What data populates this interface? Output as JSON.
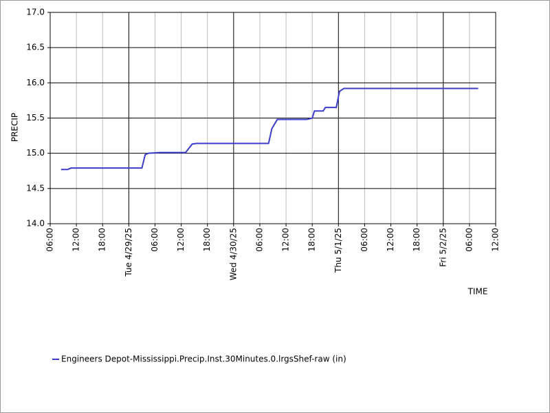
{
  "chart_data": {
    "type": "line",
    "y_label": "PRECIP",
    "x_label": "TIME",
    "x": [
      "2025-04-28T08:30",
      "2025-04-28T10:00",
      "2025-04-28T10:45",
      "2025-04-29T03:00",
      "2025-04-29T03:45",
      "2025-04-29T04:30",
      "2025-04-29T07:00",
      "2025-04-29T13:00",
      "2025-04-29T14:30",
      "2025-04-29T15:30",
      "2025-04-30T08:00",
      "2025-04-30T08:45",
      "2025-04-30T10:00",
      "2025-04-30T16:45",
      "2025-04-30T18:00",
      "2025-04-30T18:30",
      "2025-04-30T20:30",
      "2025-04-30T21:00",
      "2025-04-30T23:30",
      "2025-05-01T00:15",
      "2025-05-01T01:15",
      "2025-05-02T08:00"
    ],
    "series": [
      {
        "name": "Engineers Depot-Mississippi.Precip.Inst.30Minutes.0.lrgsShef-raw (in)",
        "color": "#3b3bcc",
        "values": [
          14.77,
          14.77,
          14.79,
          14.79,
          14.98,
          15.0,
          15.01,
          15.01,
          15.13,
          15.14,
          15.14,
          15.35,
          15.48,
          15.48,
          15.5,
          15.6,
          15.6,
          15.65,
          15.65,
          15.88,
          15.92,
          15.92
        ]
      }
    ],
    "xlim": [
      "2025-04-28T06:00",
      "2025-05-02T12:00"
    ],
    "xticks": [
      {
        "value": "2025-04-28T06:00",
        "label": "06:00"
      },
      {
        "value": "2025-04-28T12:00",
        "label": "12:00"
      },
      {
        "value": "2025-04-28T18:00",
        "label": "18:00"
      },
      {
        "value": "2025-04-29T00:00",
        "label": "Tue 4/29/25"
      },
      {
        "value": "2025-04-29T06:00",
        "label": "06:00"
      },
      {
        "value": "2025-04-29T12:00",
        "label": "12:00"
      },
      {
        "value": "2025-04-29T18:00",
        "label": "18:00"
      },
      {
        "value": "2025-04-30T00:00",
        "label": "Wed 4/30/25"
      },
      {
        "value": "2025-04-30T06:00",
        "label": "06:00"
      },
      {
        "value": "2025-04-30T12:00",
        "label": "12:00"
      },
      {
        "value": "2025-04-30T18:00",
        "label": "18:00"
      },
      {
        "value": "2025-05-01T00:00",
        "label": "Thu 5/1/25"
      },
      {
        "value": "2025-05-01T06:00",
        "label": "06:00"
      },
      {
        "value": "2025-05-01T12:00",
        "label": "12:00"
      },
      {
        "value": "2025-05-01T18:00",
        "label": "18:00"
      },
      {
        "value": "2025-05-02T00:00",
        "label": "Fri 5/2/25"
      },
      {
        "value": "2025-05-02T06:00",
        "label": "06:00"
      },
      {
        "value": "2025-05-02T12:00",
        "label": "12:00"
      }
    ],
    "ylim": [
      14,
      17
    ],
    "yticks": [
      {
        "value": 14,
        "label": "14.0"
      },
      14.5,
      {
        "value": 15,
        "label": "15.0"
      },
      15.5,
      {
        "value": 16,
        "label": "16.0"
      },
      16.5,
      {
        "value": 17,
        "label": "17.0"
      }
    ],
    "grid": true,
    "legend": "bottom"
  }
}
